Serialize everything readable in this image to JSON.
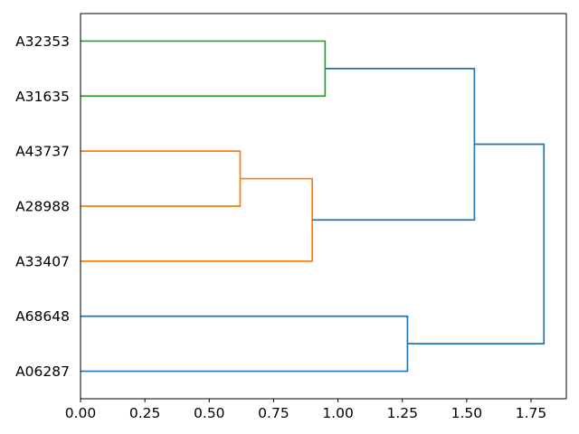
{
  "figure": {
    "background": "#ffffff",
    "axis_color": "#000000",
    "text_color": "#000000"
  },
  "chart_data": {
    "type": "dendrogram",
    "orientation": "left",
    "grid": false,
    "legend": null,
    "title": "",
    "xlabel": "",
    "ylabel": "",
    "xlim": [
      0,
      1.887
    ],
    "leaves": [
      "A32353",
      "A31635",
      "A43737",
      "A28988",
      "A33407",
      "A68648",
      "A06287"
    ],
    "x_ticks": [
      {
        "value": 0.0,
        "label": "0.00"
      },
      {
        "value": 0.25,
        "label": "0.25"
      },
      {
        "value": 0.5,
        "label": "0.50"
      },
      {
        "value": 0.75,
        "label": "0.75"
      },
      {
        "value": 1.0,
        "label": "1.00"
      },
      {
        "value": 1.25,
        "label": "1.25"
      },
      {
        "value": 1.5,
        "label": "1.50"
      },
      {
        "value": 1.75,
        "label": "1.75"
      }
    ],
    "colors": {
      "blue": "#1f77b4",
      "orange": "#ff7f0e",
      "green": "#2ca02c"
    },
    "links": [
      {
        "id": "m1",
        "children": [
          "A43737",
          "A28988"
        ],
        "distance": 0.62,
        "color": "#ff7f0e"
      },
      {
        "id": "m2",
        "children": [
          "m1",
          "A33407"
        ],
        "distance": 0.9,
        "color": "#ff7f0e"
      },
      {
        "id": "m3",
        "children": [
          "A32353",
          "A31635"
        ],
        "distance": 0.95,
        "color": "#2ca02c"
      },
      {
        "id": "m4",
        "children": [
          "m3",
          "m2"
        ],
        "distance": 1.53,
        "color": "#1f77b4"
      },
      {
        "id": "m5",
        "children": [
          "A68648",
          "A06287"
        ],
        "distance": 1.27,
        "color": "#1f77b4"
      },
      {
        "id": "m6",
        "children": [
          "m4",
          "m5"
        ],
        "distance": 1.8,
        "color": "#1f77b4"
      }
    ]
  }
}
